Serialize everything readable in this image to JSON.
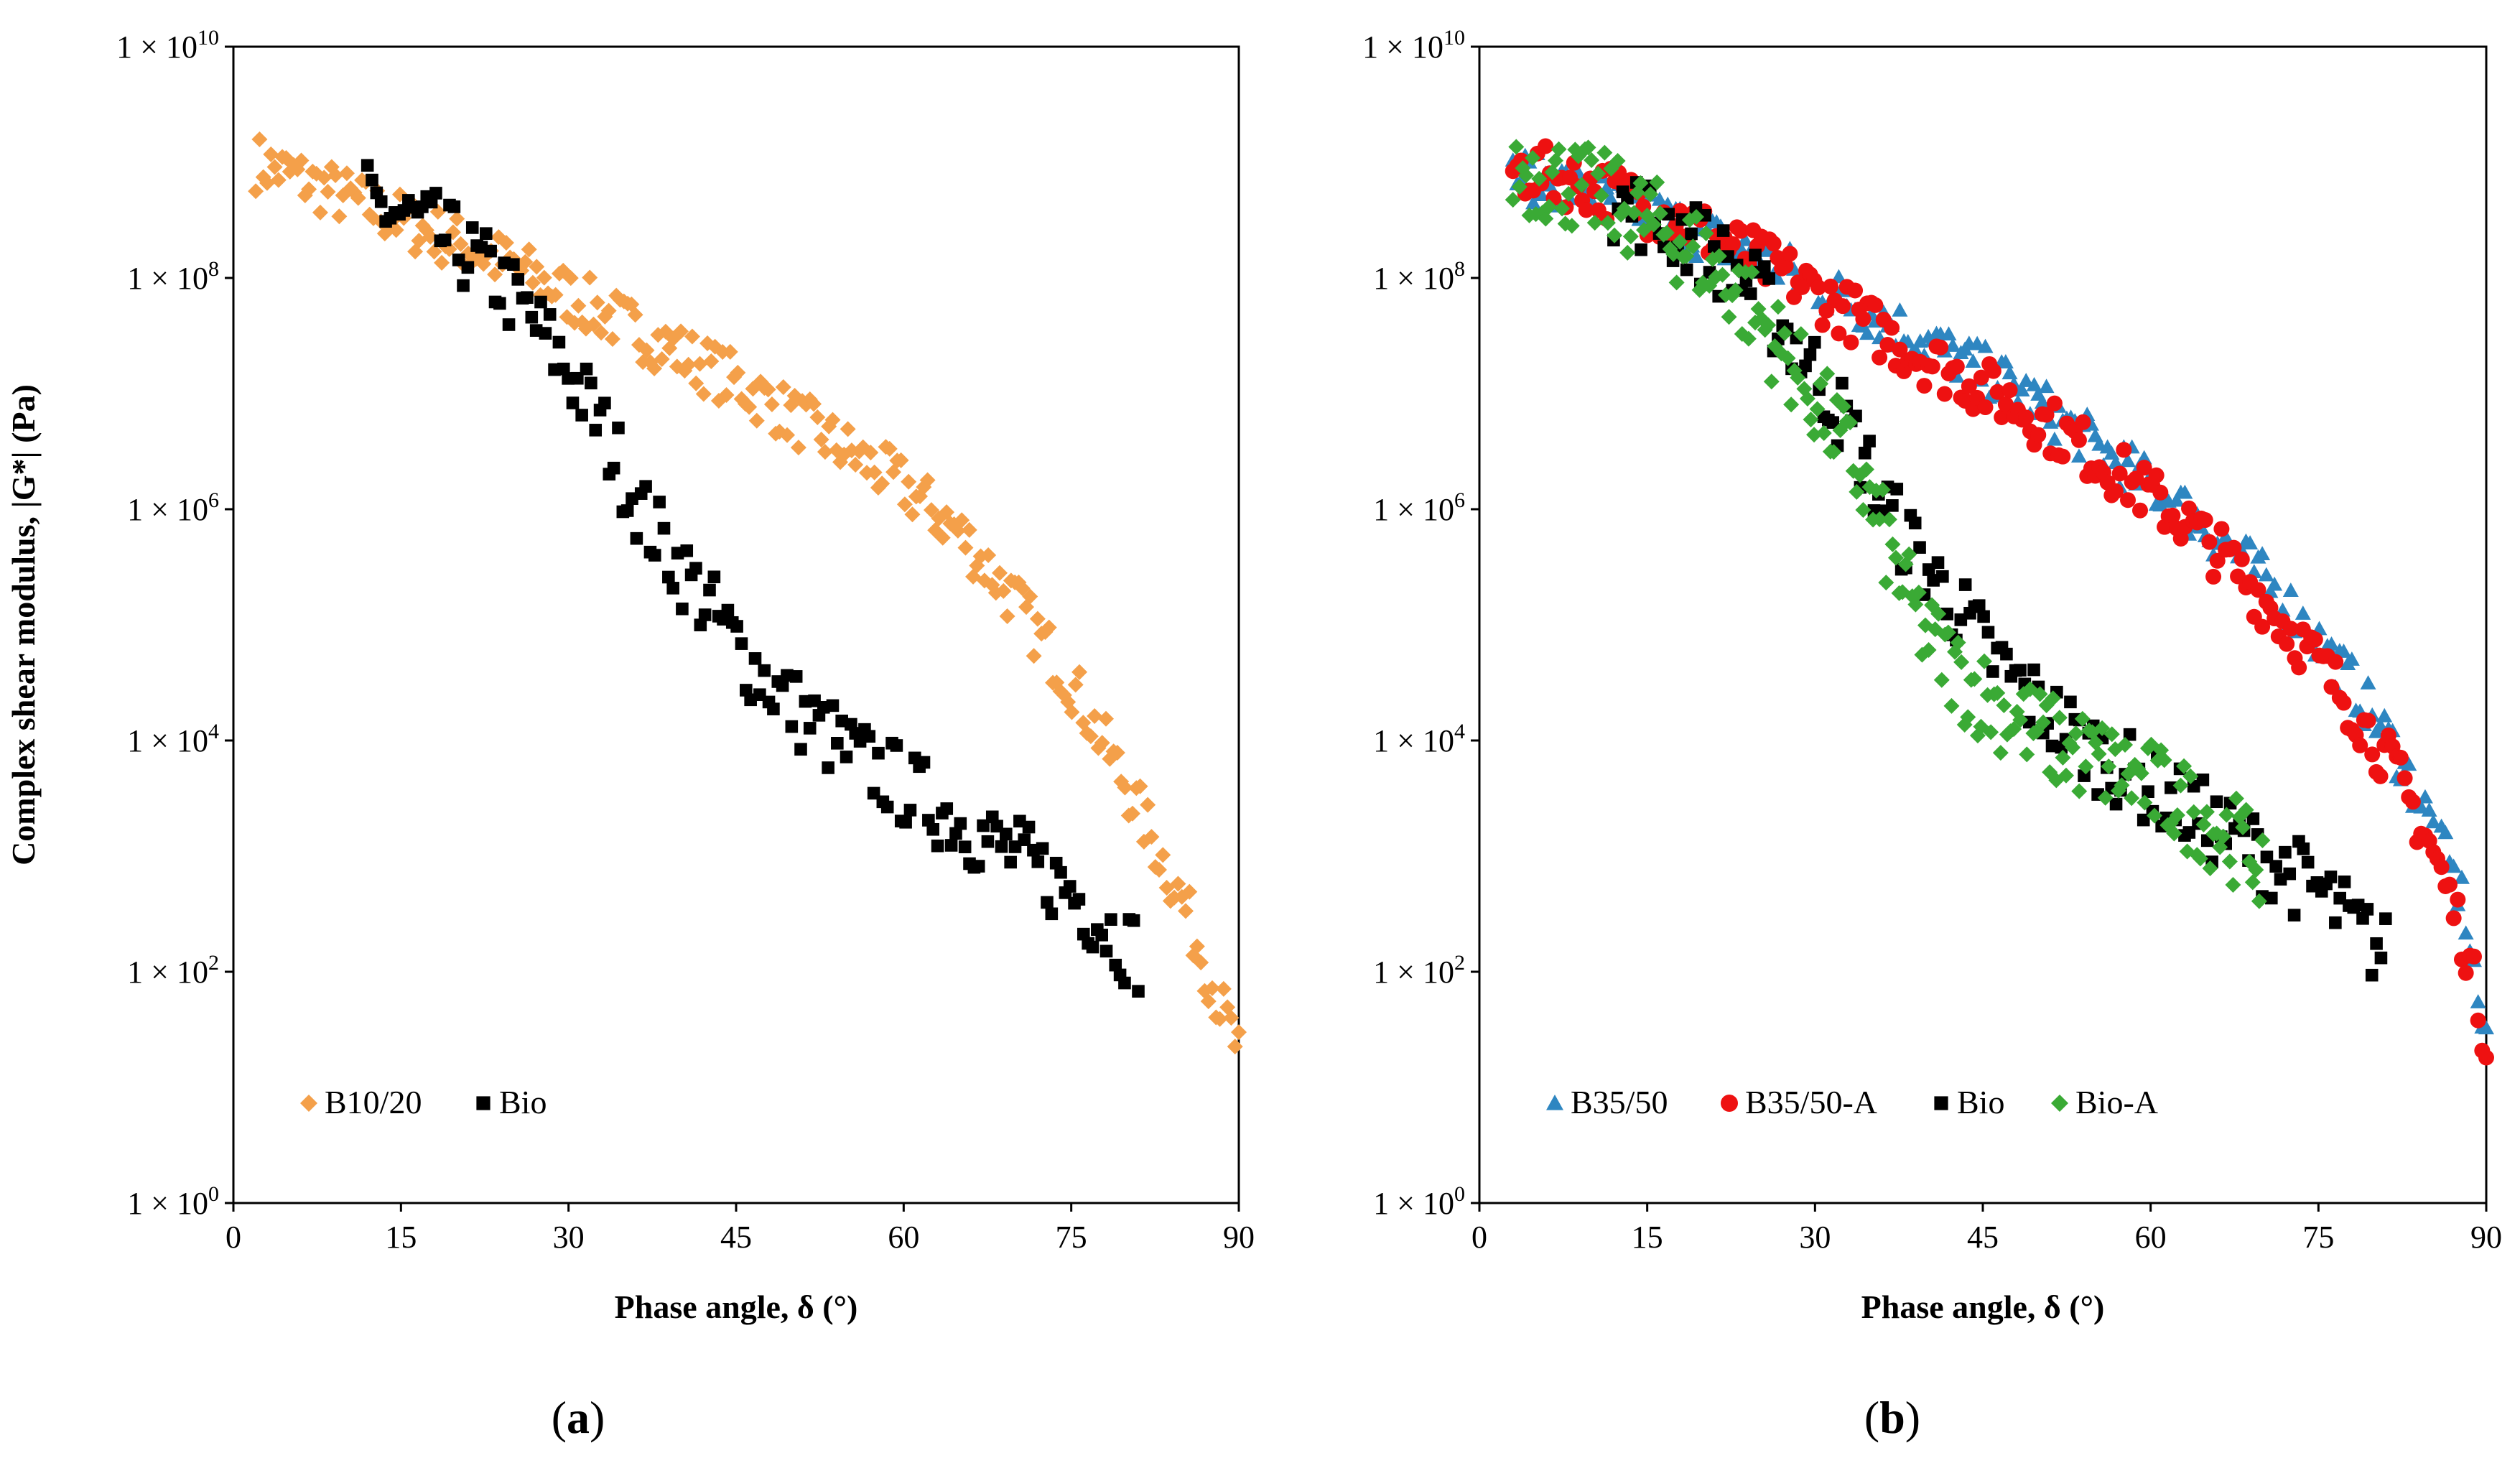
{
  "figure": {
    "panel_labels": [
      "(a)",
      "(b)"
    ]
  },
  "chart_data": [
    {
      "type": "scatter",
      "panel": "(a)",
      "xlabel": "Phase angle, δ (°)",
      "ylabel": "Complex shear modulus, |G*| (Pa)",
      "xlim": [
        0,
        90
      ],
      "ylim_log10": [
        0,
        10
      ],
      "xticks": [
        "0",
        "15",
        "30",
        "45",
        "60",
        "75",
        "90"
      ],
      "yticks": [
        {
          "base": "1 × 10",
          "exp": "0"
        },
        {
          "base": "1 × 10",
          "exp": "2"
        },
        {
          "base": "1 × 10",
          "exp": "4"
        },
        {
          "base": "1 × 10",
          "exp": "6"
        },
        {
          "base": "1 × 10",
          "exp": "8"
        },
        {
          "base": "1 × 10",
          "exp": "10"
        }
      ],
      "legend_position": "bottom-left",
      "series": [
        {
          "name": "B10/20",
          "marker": "diamond",
          "color": "#f4a04a",
          "curve": [
            [
              2,
              9.0
            ],
            [
              5,
              8.9
            ],
            [
              10,
              8.7
            ],
            [
              15,
              8.5
            ],
            [
              20,
              8.3
            ],
            [
              25,
              8.1
            ],
            [
              30,
              7.85
            ],
            [
              35,
              7.6
            ],
            [
              40,
              7.35
            ],
            [
              45,
              7.1
            ],
            [
              50,
              6.8
            ],
            [
              55,
              6.5
            ],
            [
              60,
              6.2
            ],
            [
              65,
              5.8
            ],
            [
              70,
              5.2
            ],
            [
              75,
              4.5
            ],
            [
              80,
              3.6
            ],
            [
              85,
              2.6
            ],
            [
              88,
              1.8
            ],
            [
              90,
              1.3
            ]
          ],
          "jitter": 0.25,
          "count": 260
        },
        {
          "name": "Bio",
          "marker": "square",
          "color": "#000000",
          "curve": [
            [
              12,
              8.65
            ],
            [
              15,
              8.55
            ],
            [
              18,
              8.4
            ],
            [
              21,
              8.2
            ],
            [
              24,
              7.95
            ],
            [
              27,
              7.6
            ],
            [
              30,
              7.2
            ],
            [
              33,
              6.7
            ],
            [
              35,
              6.3
            ],
            [
              37,
              5.9
            ],
            [
              40,
              5.5
            ],
            [
              43,
              5.1
            ],
            [
              46,
              4.7
            ],
            [
              50,
              4.3
            ],
            [
              55,
              3.9
            ],
            [
              60,
              3.6
            ],
            [
              65,
              3.3
            ],
            [
              70,
              3.0
            ],
            [
              75,
              2.7
            ],
            [
              78,
              2.4
            ],
            [
              81,
              2.15
            ]
          ],
          "jitter": 0.35,
          "count": 170
        }
      ]
    },
    {
      "type": "scatter",
      "panel": "(b)",
      "xlabel": "Phase angle, δ (°)",
      "ylabel": "",
      "xlim": [
        0,
        90
      ],
      "ylim_log10": [
        0,
        10
      ],
      "xticks": [
        "0",
        "15",
        "30",
        "45",
        "60",
        "75",
        "90"
      ],
      "yticks": [
        {
          "base": "1 × 10",
          "exp": "0"
        },
        {
          "base": "1 × 10",
          "exp": "2"
        },
        {
          "base": "1 × 10",
          "exp": "4"
        },
        {
          "base": "1 × 10",
          "exp": "6"
        },
        {
          "base": "1 × 10",
          "exp": "8"
        },
        {
          "base": "1 × 10",
          "exp": "10"
        }
      ],
      "legend_position": "bottom-left",
      "series": [
        {
          "name": "B35/50",
          "marker": "triangle",
          "color": "#2e86c1",
          "curve": [
            [
              3,
              8.9
            ],
            [
              8,
              8.8
            ],
            [
              13,
              8.65
            ],
            [
              18,
              8.45
            ],
            [
              23,
              8.25
            ],
            [
              28,
              8.05
            ],
            [
              33,
              7.8
            ],
            [
              38,
              7.55
            ],
            [
              43,
              7.3
            ],
            [
              48,
              7.05
            ],
            [
              53,
              6.7
            ],
            [
              58,
              6.35
            ],
            [
              63,
              6.0
            ],
            [
              68,
              5.6
            ],
            [
              73,
              5.1
            ],
            [
              78,
              4.5
            ],
            [
              82,
              3.9
            ],
            [
              85,
              3.3
            ],
            [
              88,
              2.6
            ],
            [
              90,
              1.3
            ]
          ],
          "jitter": 0.22,
          "count": 240
        },
        {
          "name": "B35/50-A",
          "marker": "circle",
          "color": "#ee1111",
          "curve": [
            [
              3,
              8.95
            ],
            [
              8,
              8.85
            ],
            [
              13,
              8.7
            ],
            [
              18,
              8.5
            ],
            [
              23,
              8.25
            ],
            [
              28,
              8.0
            ],
            [
              33,
              7.7
            ],
            [
              38,
              7.4
            ],
            [
              43,
              7.15
            ],
            [
              48,
              6.9
            ],
            [
              53,
              6.6
            ],
            [
              58,
              6.25
            ],
            [
              63,
              5.9
            ],
            [
              68,
              5.45
            ],
            [
              73,
              4.9
            ],
            [
              78,
              4.3
            ],
            [
              82,
              3.7
            ],
            [
              85,
              3.1
            ],
            [
              88,
              2.3
            ],
            [
              90,
              1.4
            ]
          ],
          "jitter": 0.25,
          "count": 240
        },
        {
          "name": "Bio",
          "marker": "square",
          "color": "#000000",
          "curve": [
            [
              12,
              8.65
            ],
            [
              15,
              8.55
            ],
            [
              18,
              8.4
            ],
            [
              21,
              8.2
            ],
            [
              24,
              7.95
            ],
            [
              27,
              7.6
            ],
            [
              30,
              7.2
            ],
            [
              33,
              6.7
            ],
            [
              35,
              6.3
            ],
            [
              37,
              5.9
            ],
            [
              40,
              5.5
            ],
            [
              43,
              5.1
            ],
            [
              46,
              4.7
            ],
            [
              50,
              4.3
            ],
            [
              55,
              3.9
            ],
            [
              60,
              3.6
            ],
            [
              65,
              3.3
            ],
            [
              70,
              3.0
            ],
            [
              75,
              2.7
            ],
            [
              78,
              2.4
            ],
            [
              81,
              2.15
            ]
          ],
          "jitter": 0.35,
          "count": 170
        },
        {
          "name": "Bio-A",
          "marker": "diamond",
          "color": "#3aaa35",
          "curve": [
            [
              3,
              8.95
            ],
            [
              7,
              8.85
            ],
            [
              11,
              8.7
            ],
            [
              15,
              8.5
            ],
            [
              19,
              8.25
            ],
            [
              22,
              8.0
            ],
            [
              25,
              7.65
            ],
            [
              28,
              7.25
            ],
            [
              31,
              6.8
            ],
            [
              34,
              6.3
            ],
            [
              36,
              5.8
            ],
            [
              38,
              5.3
            ],
            [
              40,
              4.9
            ],
            [
              43,
              4.55
            ],
            [
              47,
              4.25
            ],
            [
              52,
              3.95
            ],
            [
              57,
              3.75
            ],
            [
              62,
              3.5
            ],
            [
              66,
              3.25
            ],
            [
              70,
              2.95
            ]
          ],
          "jitter": 0.4,
          "count": 230
        }
      ]
    }
  ]
}
